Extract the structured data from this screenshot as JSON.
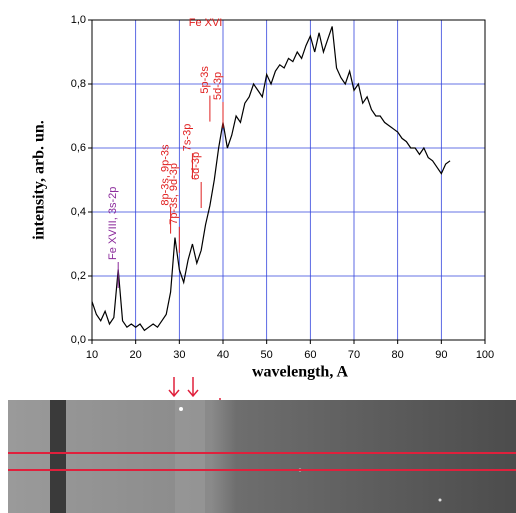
{
  "chart_data": {
    "type": "line",
    "x_label": "wavelength, A",
    "y_label": "intensity, arb. un.",
    "x": [
      10,
      11,
      12,
      13,
      14,
      15,
      16,
      17,
      18,
      19,
      20,
      21,
      22,
      23,
      24,
      25,
      26,
      27,
      28,
      29,
      30,
      31,
      32,
      33,
      34,
      35,
      36,
      37,
      38,
      39,
      40,
      41,
      42,
      43,
      44,
      45,
      46,
      47,
      48,
      49,
      50,
      51,
      52,
      53,
      54,
      55,
      56,
      57,
      58,
      59,
      60,
      61,
      62,
      63,
      64,
      65,
      66,
      67,
      68,
      69,
      70,
      71,
      72,
      73,
      74,
      75,
      76,
      77,
      78,
      79,
      80,
      81,
      82,
      83,
      84,
      85,
      86,
      87,
      88,
      89,
      90,
      91,
      92
    ],
    "series": [
      {
        "color": "#000000",
        "values": [
          0.12,
          0.08,
          0.06,
          0.09,
          0.05,
          0.07,
          0.22,
          0.06,
          0.04,
          0.05,
          0.04,
          0.05,
          0.03,
          0.04,
          0.05,
          0.04,
          0.06,
          0.08,
          0.15,
          0.32,
          0.22,
          0.18,
          0.25,
          0.3,
          0.24,
          0.28,
          0.36,
          0.42,
          0.5,
          0.6,
          0.68,
          0.6,
          0.64,
          0.7,
          0.68,
          0.74,
          0.76,
          0.8,
          0.78,
          0.76,
          0.83,
          0.8,
          0.84,
          0.86,
          0.85,
          0.88,
          0.87,
          0.9,
          0.88,
          0.92,
          0.95,
          0.9,
          0.96,
          0.9,
          0.94,
          0.98,
          0.85,
          0.82,
          0.8,
          0.84,
          0.78,
          0.8,
          0.74,
          0.76,
          0.72,
          0.7,
          0.7,
          0.68,
          0.67,
          0.66,
          0.65,
          0.63,
          0.62,
          0.6,
          0.6,
          0.58,
          0.6,
          0.57,
          0.56,
          0.54,
          0.52,
          0.55,
          0.56
        ]
      }
    ],
    "xlim": [
      10,
      100
    ],
    "xticks": [
      10,
      20,
      30,
      40,
      50,
      60,
      70,
      80,
      90,
      100
    ],
    "ylim": [
      0,
      1
    ],
    "yticks": [
      {
        "value": 0,
        "label": "0,0"
      },
      {
        "value": 0.2,
        "label": "0,2"
      },
      {
        "value": 0.4,
        "label": "0,4"
      },
      {
        "value": 0.6,
        "label": "0,6"
      },
      {
        "value": 0.8,
        "label": "0,8"
      },
      {
        "value": 1,
        "label": "1,0"
      }
    ],
    "grid": true,
    "grid_color": "#3344dd",
    "annotations": [
      {
        "text": "Fe XVIII, 3s-2p",
        "x": 16,
        "y": 0.25,
        "color": "#8b2a9b",
        "leader": true
      },
      {
        "text": "8p-3s, 9p-3s",
        "x": 28,
        "y": 0.42,
        "color": "#e02020",
        "leader": true
      },
      {
        "text": "7p-3s, 9d-3p",
        "x": 30,
        "y": 0.36,
        "color": "#e02020",
        "leader": true
      },
      {
        "text": "7s-3p",
        "x": 33,
        "y": 0.59,
        "color": "#e02020",
        "leader": true
      },
      {
        "text": "6d-3p",
        "x": 35,
        "y": 0.5,
        "color": "#e02020",
        "leader": true
      },
      {
        "text": "5p-3s",
        "x": 37,
        "y": 0.77,
        "color": "#e02020",
        "leader": true
      },
      {
        "text": "5d-3p",
        "x": 40,
        "y": 0.75,
        "color": "#e02020",
        "leader": true
      },
      {
        "text": "Fe XVI",
        "x": 36,
        "y": 0.99,
        "color": "#e02020",
        "leader": false
      }
    ]
  }
}
